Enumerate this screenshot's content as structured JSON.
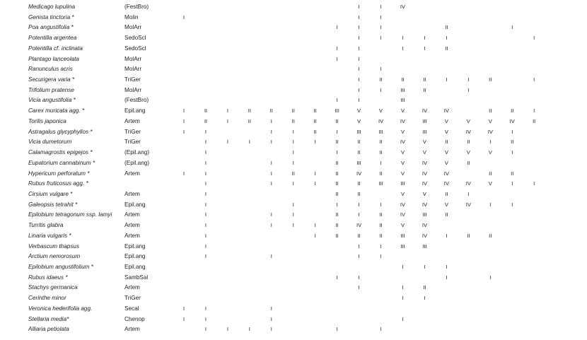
{
  "columns": 17,
  "rows": [
    {
      "species": "Medicago lupulina",
      "group": "(FestBro)",
      "cells": [
        "",
        "",
        "",
        "",
        "",
        "",
        "",
        "",
        "I",
        "I",
        "IV",
        "",
        "",
        "",
        "",
        "",
        ""
      ]
    },
    {
      "species": "Genista tinctoria *",
      "group": "Molin",
      "cells": [
        "I",
        "",
        "",
        "",
        "",
        "",
        "",
        "",
        "I",
        "I",
        "",
        "",
        "",
        "",
        "",
        "",
        ""
      ]
    },
    {
      "species": "Poa angustifolia *",
      "group": "MolArr",
      "cells": [
        "",
        "",
        "",
        "",
        "",
        "",
        "",
        "I",
        "I",
        "I",
        "",
        "",
        "II",
        "",
        "",
        "I",
        ""
      ]
    },
    {
      "species": "Potentilla argentea",
      "group": "SedoScl",
      "cells": [
        "",
        "",
        "",
        "",
        "",
        "",
        "",
        "",
        "I",
        "I",
        "I",
        "I",
        "I",
        "",
        "",
        "",
        "I"
      ]
    },
    {
      "species": "Potentilla cf. inclinata",
      "group": "SedoScl",
      "cells": [
        "",
        "",
        "",
        "",
        "",
        "",
        "",
        "I",
        "I",
        "",
        "I",
        "I",
        "II",
        "",
        "",
        "",
        ""
      ]
    },
    {
      "species": "Plantago lanceolata",
      "group": "MolArr",
      "cells": [
        "",
        "",
        "",
        "",
        "",
        "",
        "",
        "I",
        "I",
        "",
        "",
        "",
        "",
        "",
        "",
        "",
        ""
      ]
    },
    {
      "species": "Ranunculus acris",
      "group": "MolArr",
      "cells": [
        "",
        "",
        "",
        "",
        "",
        "",
        "",
        "",
        "I",
        "I",
        "",
        "",
        "",
        "",
        "",
        "",
        ""
      ]
    },
    {
      "species": "Securigera varia *",
      "group": "TriGer",
      "cells": [
        "",
        "",
        "",
        "",
        "",
        "",
        "",
        "",
        "I",
        "II",
        "II",
        "II",
        "I",
        "I",
        "II",
        "",
        "I"
      ]
    },
    {
      "species": "Trifolium pratense",
      "group": "MolArr",
      "cells": [
        "",
        "",
        "",
        "",
        "",
        "",
        "",
        "",
        "I",
        "I",
        "III",
        "II",
        "",
        "I",
        "",
        "",
        ""
      ]
    },
    {
      "species": "Vicia angustifolia *",
      "group": "(FestBro)",
      "cells": [
        "",
        "",
        "",
        "",
        "",
        "",
        "",
        "I",
        "I",
        "",
        "III",
        "",
        "",
        "",
        "",
        "",
        ""
      ]
    },
    {
      "species": "Carex muricata agg. *",
      "group": "Epil.ang",
      "cells": [
        "I",
        "II",
        "I",
        "II",
        "II",
        "II",
        "II",
        "III",
        "V",
        "V",
        "V",
        "IV",
        "IV",
        "",
        "II",
        "II",
        "I"
      ]
    },
    {
      "species": "Torilis japonica",
      "group": "Artem",
      "cells": [
        "I",
        "II",
        "I",
        "II",
        "I",
        "II",
        "II",
        "II",
        "V",
        "IV",
        "IV",
        "III",
        "V",
        "V",
        "V",
        "IV",
        "II"
      ]
    },
    {
      "species": "Astragalus glycyphyllos *",
      "group": "TriGer",
      "cells": [
        "I",
        "I",
        "",
        "",
        "I",
        "I",
        "II",
        "I",
        "III",
        "III",
        "V",
        "III",
        "V",
        "IV",
        "IV",
        "I",
        ""
      ]
    },
    {
      "species": "Vicia dumetorum",
      "group": "TriGer",
      "cells": [
        "",
        "I",
        "I",
        "I",
        "I",
        "I",
        "I",
        "II",
        "II",
        "II",
        "IV",
        "V",
        "II",
        "II",
        "I",
        "II",
        ""
      ]
    },
    {
      "species": "Calamagrostis epigejos *",
      "group": "(Epil.ang)",
      "cells": [
        "",
        "I",
        "",
        "",
        "",
        "I",
        "",
        "I",
        "II",
        "II",
        "V",
        "V",
        "V",
        "V",
        "V",
        "I",
        ""
      ]
    },
    {
      "species": "Eupatorium cannabinum *",
      "group": "(Epil.ang)",
      "cells": [
        "",
        "I",
        "",
        "",
        "I",
        "I",
        "",
        "II",
        "III",
        "I",
        "V",
        "IV",
        "V",
        "II",
        "",
        "",
        ""
      ]
    },
    {
      "species": "Hypericum perforatum *",
      "group": "Artem",
      "cells": [
        "I",
        "I",
        "",
        "",
        "I",
        "II",
        "I",
        "II",
        "IV",
        "II",
        "V",
        "IV",
        "IV",
        "",
        "II",
        "II",
        ""
      ]
    },
    {
      "species": "Rubus fruticosus agg. *",
      "group": "",
      "cells": [
        "",
        "I",
        "",
        "",
        "I",
        "I",
        "I",
        "II",
        "II",
        "III",
        "III",
        "IV",
        "IV",
        "IV",
        "V",
        "I",
        "I"
      ]
    },
    {
      "species": "Cirsium vulgare *",
      "group": "Artem",
      "cells": [
        "",
        "I",
        "",
        "",
        "",
        "",
        "",
        "II",
        "II",
        "",
        "V",
        "V",
        "II",
        "I",
        "",
        "",
        ""
      ]
    },
    {
      "species": "Galeopsis tetrahit *",
      "group": "Epil.ang",
      "cells": [
        "",
        "I",
        "",
        "",
        "",
        "I",
        "",
        "I",
        "I",
        "I",
        "IV",
        "IV",
        "V",
        "IV",
        "I",
        "I",
        ""
      ]
    },
    {
      "species": "Epilobium tetragonum ssp. lamyi",
      "group": "Artem",
      "cells": [
        "",
        "I",
        "",
        "",
        "I",
        "I",
        "",
        "II",
        "I",
        "II",
        "IV",
        "III",
        "II",
        "",
        "",
        "",
        ""
      ]
    },
    {
      "species": "Turritis glabra",
      "group": "Artem",
      "cells": [
        "",
        "I",
        "",
        "",
        "I",
        "I",
        "I",
        "II",
        "IV",
        "II",
        "V",
        "IV",
        "",
        "",
        "",
        "",
        ""
      ]
    },
    {
      "species": "Linaria vulgaris *",
      "group": "Artem",
      "cells": [
        "",
        "I",
        "",
        "",
        "",
        "",
        "I",
        "II",
        "II",
        "II",
        "III",
        "IV",
        "I",
        "II",
        "II",
        "",
        ""
      ]
    },
    {
      "species": "Verbascum thapsus",
      "group": "Epil.ang",
      "cells": [
        "",
        "I",
        "",
        "",
        "",
        "",
        "",
        "",
        "I",
        "I",
        "III",
        "III",
        "",
        "",
        "",
        "",
        ""
      ]
    },
    {
      "species": "Arctium nemorosum",
      "group": "Epil.ang",
      "cells": [
        "",
        "I",
        "",
        "",
        "I",
        "",
        "",
        "",
        "I",
        "I",
        "",
        "",
        "",
        "",
        "",
        "",
        ""
      ]
    },
    {
      "species": "Epilobium angustifolium *",
      "group": "Epil.ang",
      "cells": [
        "",
        "",
        "",
        "",
        "",
        "",
        "",
        "",
        "",
        "",
        "I",
        "I",
        "I",
        "",
        "",
        "",
        ""
      ]
    },
    {
      "species": "Rubus idaeus *",
      "group": "SambSal",
      "cells": [
        "",
        "",
        "",
        "",
        "",
        "",
        "",
        "I",
        "I",
        "",
        "",
        "",
        "I",
        "",
        "I",
        "",
        ""
      ]
    },
    {
      "species": "Stachys germanica",
      "group": "Artem",
      "cells": [
        "",
        "",
        "",
        "",
        "",
        "",
        "",
        "",
        "I",
        "",
        "I",
        "II",
        "",
        "",
        "",
        "",
        ""
      ]
    },
    {
      "species": "Cerinthe minor",
      "group": "TriGer",
      "cells": [
        "",
        "",
        "",
        "",
        "",
        "",
        "",
        "",
        "",
        "",
        "I",
        "I",
        "",
        "",
        "",
        "",
        ""
      ]
    },
    {
      "species": "Veronica hederifolia agg.",
      "group": "Secal",
      "cells": [
        "I",
        "I",
        "",
        "",
        "I",
        "",
        "",
        "",
        "",
        "",
        "",
        "",
        "",
        "",
        "",
        "",
        ""
      ]
    },
    {
      "species": "Stellaria media*",
      "group": "Chenop",
      "cells": [
        "I",
        "I",
        "",
        "",
        "I",
        "",
        "",
        "",
        "",
        "",
        "I",
        "",
        "",
        "",
        "",
        "",
        ""
      ]
    },
    {
      "species": "Alliaria petiolata",
      "group": "Artem",
      "cells": [
        "",
        "I",
        "I",
        "I",
        "I",
        "",
        "",
        "I",
        "",
        "I",
        "",
        "",
        "",
        "",
        "",
        "",
        ""
      ]
    }
  ]
}
